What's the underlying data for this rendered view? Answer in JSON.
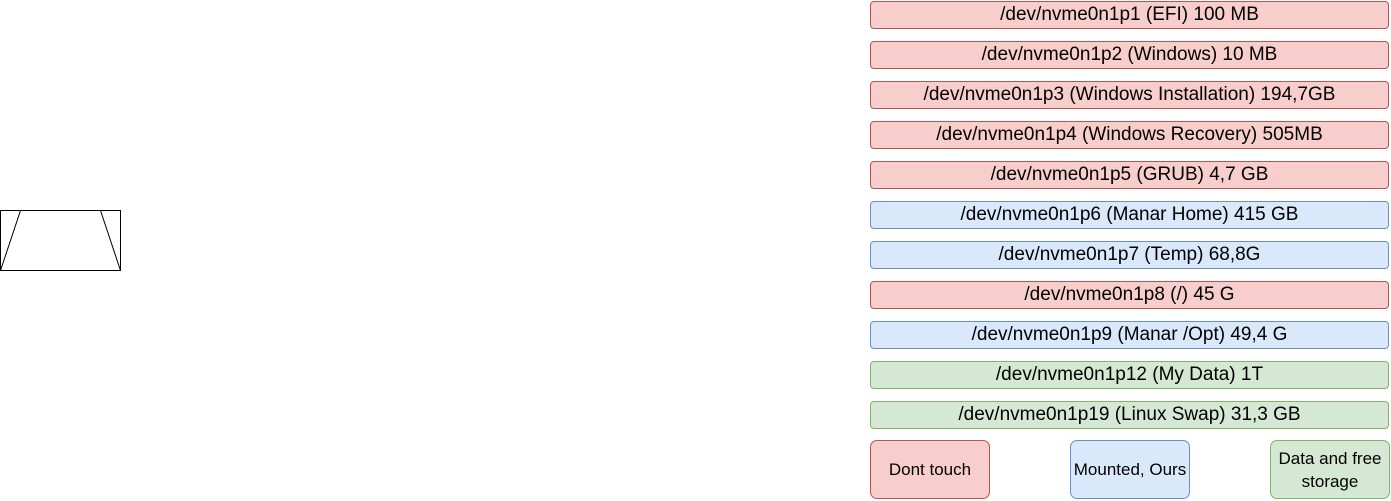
{
  "shape": {
    "icon": "trapezoid-icon"
  },
  "partitions": [
    {
      "label": "/dev/nvme0n1p1  (EFI) 100 MB",
      "category": "dont-touch"
    },
    {
      "label": "/dev/nvme0n1p2 (Windows) 10 MB",
      "category": "dont-touch"
    },
    {
      "label": "/dev/nvme0n1p3 (Windows Installation) 194,7GB",
      "category": "dont-touch"
    },
    {
      "label": "/dev/nvme0n1p4 (Windows Recovery) 505MB",
      "category": "dont-touch"
    },
    {
      "label": "/dev/nvme0n1p5 (GRUB) 4,7 GB",
      "category": "dont-touch"
    },
    {
      "label": "/dev/nvme0n1p6 (Manar Home) 415 GB",
      "category": "mounted"
    },
    {
      "label": "/dev/nvme0n1p7 (Temp) 68,8G",
      "category": "mounted"
    },
    {
      "label": "/dev/nvme0n1p8 (/) 45 G",
      "category": "dont-touch"
    },
    {
      "label": "/dev/nvme0n1p9 (Manar /Opt) 49,4 G",
      "category": "mounted"
    },
    {
      "label": "/dev/nvme0n1p12 (My Data) 1T",
      "category": "data"
    },
    {
      "label": "/dev/nvme0n1p19 (Linux Swap) 31,3 GB",
      "category": "data"
    }
  ],
  "legend": {
    "dont_touch": {
      "label": "Dont touch",
      "fill": "#f8cecc",
      "stroke": "#b85450"
    },
    "mounted": {
      "label": "Mounted, Ours",
      "fill": "#dae8fc",
      "stroke": "#6c8ebf"
    },
    "data": {
      "label": "Data and free storage",
      "fill": "#d5e8d4",
      "stroke": "#82b366"
    }
  }
}
